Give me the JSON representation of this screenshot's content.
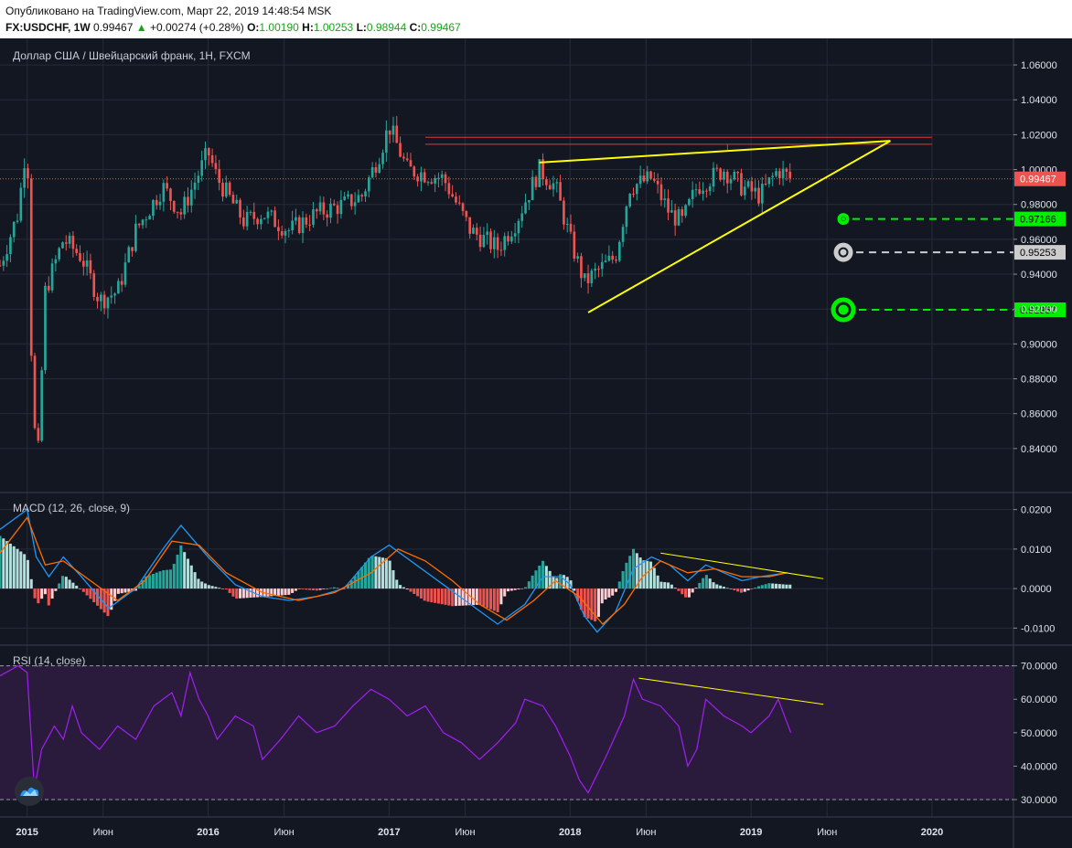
{
  "header": {
    "published": "Опубликовано на TradingView.com, Март 22, 2019 14:48:54 MSK",
    "symbol": "FX:USDCHF, 1W",
    "last": "0.99467",
    "change": "+0.00274 (+0.28%)",
    "open_label": "O:",
    "open": "1.00190",
    "high_label": "H:",
    "high": "1.00253",
    "low_label": "L:",
    "low": "0.98944",
    "close_label": "C:",
    "close": "0.99467"
  },
  "colors": {
    "background": "#131722",
    "grid": "#262b38",
    "up": "#26a69a",
    "down": "#ef5350",
    "trendline": "#ffff00",
    "resistance": "#e53935",
    "target_green": "#00ee00",
    "target_white": "#cccccc",
    "macd_line": "#2196f3",
    "signal_line": "#ff6d00",
    "rsi_line": "#a020f0",
    "rsi_band": "#2a1a3c"
  },
  "chart_data": [
    {
      "type": "candlestick",
      "title": "Доллар США / Швейцарский франк, 1Н, FXCM",
      "ylim": [
        0.82,
        1.07
      ],
      "yticks": [
        "1.06000",
        "1.04000",
        "1.02000",
        "1.00000",
        "0.98000",
        "0.96000",
        "0.94000",
        "0.92000",
        "0.90000",
        "0.88000",
        "0.86000",
        "0.84000"
      ],
      "last_price": 0.99467,
      "last_price_label": "0.99467",
      "price_path": [
        [
          2014.85,
          0.945
        ],
        [
          2014.95,
          0.975
        ],
        [
          2015.0,
          1.02
        ],
        [
          2015.03,
          0.86
        ],
        [
          2015.06,
          0.835
        ],
        [
          2015.1,
          0.93
        ],
        [
          2015.2,
          0.96
        ],
        [
          2015.3,
          0.95
        ],
        [
          2015.4,
          0.925
        ],
        [
          2015.5,
          0.93
        ],
        [
          2015.6,
          0.965
        ],
        [
          2015.75,
          0.99
        ],
        [
          2015.85,
          0.975
        ],
        [
          2016.0,
          1.01
        ],
        [
          2016.05,
          0.995
        ],
        [
          2016.2,
          0.97
        ],
        [
          2016.3,
          0.975
        ],
        [
          2016.45,
          0.965
        ],
        [
          2016.6,
          0.975
        ],
        [
          2016.75,
          0.98
        ],
        [
          2016.85,
          0.985
        ],
        [
          2016.95,
          1.01
        ],
        [
          2017.0,
          1.025
        ],
        [
          2017.1,
          1.0
        ],
        [
          2017.3,
          0.995
        ],
        [
          2017.45,
          0.965
        ],
        [
          2017.6,
          0.955
        ],
        [
          2017.7,
          0.97
        ],
        [
          2017.83,
          1.0
        ],
        [
          2017.92,
          0.99
        ],
        [
          2018.0,
          0.96
        ],
        [
          2018.08,
          0.935
        ],
        [
          2018.13,
          0.94
        ],
        [
          2018.25,
          0.95
        ],
        [
          2018.33,
          0.99
        ],
        [
          2018.45,
          0.995
        ],
        [
          2018.55,
          0.975
        ],
        [
          2018.62,
          0.97
        ],
        [
          2018.7,
          0.99
        ],
        [
          2018.85,
          1.0
        ],
        [
          2018.95,
          0.99
        ],
        [
          2019.05,
          0.985
        ],
        [
          2019.15,
          1.0
        ],
        [
          2019.22,
          0.99467
        ]
      ],
      "trendline_upper": [
        [
          2017.83,
          1.004
        ],
        [
          2019.77,
          1.0165
        ]
      ],
      "trendline_lower": [
        [
          2018.1,
          0.918
        ],
        [
          2019.77,
          1.0165
        ]
      ],
      "resistance_levels": [
        1.0185,
        1.0145
      ],
      "targets": [
        {
          "price": 0.97166,
          "label": "0.97166",
          "color": "#00ee00",
          "size": "small"
        },
        {
          "price": 0.95253,
          "label": "0.95253",
          "color": "#cccccc",
          "size": "medium"
        },
        {
          "price": 0.91957,
          "label": "0.91957",
          "color": "#00ee00",
          "size": "large"
        }
      ]
    },
    {
      "type": "macd",
      "title": "MACD (12, 26, close, 9)",
      "ylim": [
        -0.012,
        0.022
      ],
      "yticks": [
        "0.0200",
        "0.0100",
        "0.0000",
        "-0.0100"
      ],
      "macd_path": [
        [
          2014.85,
          0.015
        ],
        [
          2015.0,
          0.02
        ],
        [
          2015.05,
          0.008
        ],
        [
          2015.12,
          0.003
        ],
        [
          2015.2,
          0.008
        ],
        [
          2015.3,
          0.003
        ],
        [
          2015.45,
          -0.005
        ],
        [
          2015.6,
          0.0
        ],
        [
          2015.75,
          0.01
        ],
        [
          2015.85,
          0.016
        ],
        [
          2016.0,
          0.008
        ],
        [
          2016.15,
          0.001
        ],
        [
          2016.3,
          -0.002
        ],
        [
          2016.45,
          -0.003
        ],
        [
          2016.6,
          -0.002
        ],
        [
          2016.75,
          0.0
        ],
        [
          2016.9,
          0.008
        ],
        [
          2017.0,
          0.011
        ],
        [
          2017.15,
          0.006
        ],
        [
          2017.3,
          0.001
        ],
        [
          2017.45,
          -0.004
        ],
        [
          2017.6,
          -0.009
        ],
        [
          2017.75,
          -0.004
        ],
        [
          2017.85,
          0.003
        ],
        [
          2017.95,
          0.003
        ],
        [
          2018.0,
          0.001
        ],
        [
          2018.08,
          -0.007
        ],
        [
          2018.15,
          -0.011
        ],
        [
          2018.25,
          -0.006
        ],
        [
          2018.35,
          0.005
        ],
        [
          2018.45,
          0.008
        ],
        [
          2018.55,
          0.006
        ],
        [
          2018.65,
          0.002
        ],
        [
          2018.75,
          0.006
        ],
        [
          2018.85,
          0.004
        ],
        [
          2018.95,
          0.002
        ],
        [
          2019.05,
          0.003
        ],
        [
          2019.2,
          0.004
        ]
      ],
      "signal_path": [
        [
          2014.85,
          0.009
        ],
        [
          2015.0,
          0.018
        ],
        [
          2015.1,
          0.006
        ],
        [
          2015.2,
          0.007
        ],
        [
          2015.35,
          0.002
        ],
        [
          2015.5,
          -0.003
        ],
        [
          2015.65,
          0.002
        ],
        [
          2015.8,
          0.012
        ],
        [
          2015.95,
          0.011
        ],
        [
          2016.1,
          0.004
        ],
        [
          2016.3,
          -0.001
        ],
        [
          2016.5,
          -0.003
        ],
        [
          2016.7,
          -0.001
        ],
        [
          2016.9,
          0.004
        ],
        [
          2017.05,
          0.01
        ],
        [
          2017.2,
          0.007
        ],
        [
          2017.35,
          0.002
        ],
        [
          2017.5,
          -0.004
        ],
        [
          2017.65,
          -0.008
        ],
        [
          2017.8,
          -0.003
        ],
        [
          2017.92,
          0.002
        ],
        [
          2018.05,
          -0.002
        ],
        [
          2018.18,
          -0.009
        ],
        [
          2018.3,
          -0.004
        ],
        [
          2018.4,
          0.003
        ],
        [
          2018.5,
          0.007
        ],
        [
          2018.65,
          0.004
        ],
        [
          2018.8,
          0.005
        ],
        [
          2018.95,
          0.003
        ],
        [
          2019.1,
          0.003
        ],
        [
          2019.2,
          0.004
        ]
      ],
      "divergence_line": [
        [
          2018.5,
          0.009
        ],
        [
          2019.4,
          0.0025
        ]
      ]
    },
    {
      "type": "rsi",
      "title": "RSI (14, close)",
      "ylim": [
        27,
        74
      ],
      "yticks": [
        "70.0000",
        "60.0000",
        "50.0000",
        "40.0000",
        "30.0000"
      ],
      "band": [
        30,
        70
      ],
      "rsi_path": [
        [
          2014.85,
          67
        ],
        [
          2014.95,
          70
        ],
        [
          2015.0,
          68
        ],
        [
          2015.04,
          33
        ],
        [
          2015.08,
          45
        ],
        [
          2015.15,
          52
        ],
        [
          2015.2,
          48
        ],
        [
          2015.25,
          58
        ],
        [
          2015.3,
          50
        ],
        [
          2015.4,
          45
        ],
        [
          2015.5,
          52
        ],
        [
          2015.6,
          48
        ],
        [
          2015.7,
          58
        ],
        [
          2015.8,
          62
        ],
        [
          2015.85,
          55
        ],
        [
          2015.9,
          68
        ],
        [
          2015.95,
          60
        ],
        [
          2016.0,
          55
        ],
        [
          2016.05,
          48
        ],
        [
          2016.15,
          55
        ],
        [
          2016.25,
          52
        ],
        [
          2016.3,
          42
        ],
        [
          2016.4,
          48
        ],
        [
          2016.5,
          55
        ],
        [
          2016.6,
          50
        ],
        [
          2016.7,
          52
        ],
        [
          2016.8,
          58
        ],
        [
          2016.9,
          63
        ],
        [
          2017.0,
          60
        ],
        [
          2017.1,
          55
        ],
        [
          2017.2,
          58
        ],
        [
          2017.3,
          50
        ],
        [
          2017.4,
          47
        ],
        [
          2017.5,
          42
        ],
        [
          2017.6,
          47
        ],
        [
          2017.7,
          53
        ],
        [
          2017.75,
          60
        ],
        [
          2017.85,
          58
        ],
        [
          2017.92,
          52
        ],
        [
          2018.0,
          43
        ],
        [
          2018.05,
          36
        ],
        [
          2018.1,
          32
        ],
        [
          2018.2,
          43
        ],
        [
          2018.3,
          55
        ],
        [
          2018.35,
          66
        ],
        [
          2018.4,
          60
        ],
        [
          2018.5,
          58
        ],
        [
          2018.55,
          55
        ],
        [
          2018.6,
          52
        ],
        [
          2018.65,
          40
        ],
        [
          2018.7,
          45
        ],
        [
          2018.75,
          60
        ],
        [
          2018.85,
          55
        ],
        [
          2018.95,
          52
        ],
        [
          2019.0,
          50
        ],
        [
          2019.1,
          55
        ],
        [
          2019.15,
          60
        ],
        [
          2019.22,
          50
        ]
      ],
      "divergence_line": [
        [
          2018.38,
          66.3
        ],
        [
          2019.4,
          58.5
        ]
      ]
    }
  ],
  "x_axis": {
    "range": [
      2014.85,
      2020.45
    ],
    "ticks": [
      {
        "x": 2015.0,
        "label": "2015",
        "bold": true
      },
      {
        "x": 2015.42,
        "label": "Июн",
        "bold": false
      },
      {
        "x": 2016.0,
        "label": "2016",
        "bold": true
      },
      {
        "x": 2016.42,
        "label": "Июн",
        "bold": false
      },
      {
        "x": 2017.0,
        "label": "2017",
        "bold": true
      },
      {
        "x": 2017.42,
        "label": "Июн",
        "bold": false
      },
      {
        "x": 2018.0,
        "label": "2018",
        "bold": true
      },
      {
        "x": 2018.42,
        "label": "Июн",
        "bold": false
      },
      {
        "x": 2019.0,
        "label": "2019",
        "bold": true
      },
      {
        "x": 2019.42,
        "label": "Июн",
        "bold": false
      },
      {
        "x": 2020.0,
        "label": "2020",
        "bold": true
      }
    ]
  },
  "logo_icon": "tradingview-cloud-icon"
}
